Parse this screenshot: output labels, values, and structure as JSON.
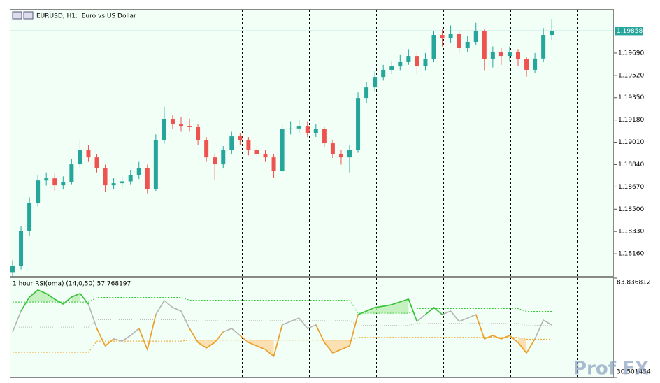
{
  "chart_data": [
    {
      "type": "candlestick",
      "title": "EURUSD, H1:  Euro vs US Dollar",
      "up_color": "#26a69a",
      "down_color": "#ef5350",
      "open": [
        1.1802,
        1.18069,
        1.18336,
        1.18549,
        1.18719,
        1.18735,
        1.18682,
        1.18709,
        1.18842,
        1.18949,
        1.18895,
        1.18815,
        1.18682,
        1.18698,
        1.18712,
        1.18762,
        1.18815,
        1.18656,
        1.19029,
        1.19189,
        1.19146,
        1.19135,
        1.19128,
        1.19029,
        1.18895,
        1.18842,
        1.18949,
        1.19055,
        1.19029,
        1.18949,
        1.18922,
        1.18895,
        1.18789,
        1.19109,
        1.19115,
        1.19135,
        1.19082,
        1.19109,
        1.19002,
        1.18922,
        1.18895,
        1.18949,
        1.19348,
        1.19428,
        1.19508,
        1.19562,
        1.19588,
        1.19626,
        1.19668,
        1.19588,
        1.19642,
        1.19828,
        1.19801,
        1.19839,
        1.19732,
        1.19775,
        1.19855,
        1.19642,
        1.19695,
        1.19668,
        1.197,
        1.19642,
        1.19562,
        1.19648,
        1.19828
      ],
      "high": [
        1.1811,
        1.1837,
        1.1859,
        1.1876,
        1.1878,
        1.1877,
        1.1875,
        1.1888,
        1.1902,
        1.1899,
        1.1892,
        1.1884,
        1.1874,
        1.1875,
        1.188,
        1.1886,
        1.1884,
        1.1907,
        1.1928,
        1.1922,
        1.192,
        1.1919,
        1.1915,
        1.1905,
        1.1892,
        1.1898,
        1.1909,
        1.1908,
        1.1905,
        1.1898,
        1.1895,
        1.1892,
        1.1915,
        1.1917,
        1.1918,
        1.1917,
        1.1915,
        1.1913,
        1.1903,
        1.1895,
        1.1899,
        1.1939,
        1.1947,
        1.1955,
        1.196,
        1.1963,
        1.1968,
        1.1972,
        1.197,
        1.1969,
        1.1986,
        1.1987,
        1.199,
        1.1986,
        1.1982,
        1.1992,
        1.1987,
        1.1974,
        1.1973,
        1.1974,
        1.1972,
        1.1966,
        1.1969,
        1.1988,
        1.1995
      ],
      "low": [
        1.1799,
        1.1804,
        1.183,
        1.1852,
        1.1868,
        1.1864,
        1.1865,
        1.1869,
        1.1881,
        1.1886,
        1.1878,
        1.1863,
        1.1865,
        1.1866,
        1.1869,
        1.1873,
        1.1862,
        1.1864,
        1.19,
        1.1911,
        1.1909,
        1.1909,
        1.1899,
        1.1886,
        1.1872,
        1.1881,
        1.1892,
        1.1899,
        1.1891,
        1.1889,
        1.1886,
        1.1874,
        1.1877,
        1.1907,
        1.1908,
        1.1905,
        1.1905,
        1.1897,
        1.1889,
        1.1884,
        1.1878,
        1.1893,
        1.1931,
        1.194,
        1.1948,
        1.1953,
        1.1956,
        1.196,
        1.1953,
        1.1956,
        1.1962,
        1.1974,
        1.1977,
        1.1969,
        1.197,
        1.1975,
        1.1956,
        1.1958,
        1.196,
        1.1963,
        1.1959,
        1.1951,
        1.1954,
        1.1962,
        1.1979
      ],
      "close": [
        1.18069,
        1.18336,
        1.18549,
        1.18719,
        1.18735,
        1.18682,
        1.18709,
        1.18842,
        1.18949,
        1.18895,
        1.18815,
        1.18682,
        1.18698,
        1.18712,
        1.18762,
        1.18815,
        1.18656,
        1.19029,
        1.19189,
        1.19146,
        1.19135,
        1.19128,
        1.19029,
        1.18895,
        1.18842,
        1.18949,
        1.19055,
        1.19029,
        1.18949,
        1.18922,
        1.18895,
        1.18789,
        1.19109,
        1.19115,
        1.19135,
        1.19082,
        1.19109,
        1.19002,
        1.18922,
        1.18895,
        1.18949,
        1.19348,
        1.19428,
        1.19508,
        1.19562,
        1.19588,
        1.19626,
        1.19668,
        1.19588,
        1.19642,
        1.19828,
        1.19801,
        1.19839,
        1.19732,
        1.19775,
        1.19855,
        1.19642,
        1.19695,
        1.19668,
        1.197,
        1.19642,
        1.19562,
        1.19648,
        1.19828,
        1.19858
      ],
      "ylim": [
        1.1799,
        1.2002
      ],
      "yticks": [
        {
          "value": 1.1969,
          "label": "1.19690"
        },
        {
          "value": 1.1952,
          "label": "1.19520"
        },
        {
          "value": 1.1935,
          "label": "1.19350"
        },
        {
          "value": 1.1918,
          "label": "1.19180"
        },
        {
          "value": 1.1901,
          "label": "1.19010"
        },
        {
          "value": 1.1884,
          "label": "1.18840"
        },
        {
          "value": 1.1867,
          "label": "1.18670"
        },
        {
          "value": 1.185,
          "label": "1.18500"
        },
        {
          "value": 1.1833,
          "label": "1.18330"
        },
        {
          "value": 1.1816,
          "label": "1.18160"
        }
      ],
      "current_price": 1.19858,
      "current_color": "#26a69a"
    },
    {
      "type": "line",
      "title": "1 hour RSI(oma) (14,0,50) 57.768197",
      "ylim": [
        30.501454,
        83.836812
      ],
      "yticks": [
        83.836812,
        30.501454
      ],
      "line_color": "#b4b4b4",
      "above_color": "#33c633",
      "below_color": "#f0a020",
      "rsi": [
        54.9,
        66.2,
        73.7,
        77.5,
        75.6,
        72.6,
        69.9,
        73.7,
        75.6,
        69.9,
        56.8,
        47.4,
        51.2,
        50.0,
        53.0,
        56.8,
        45.5,
        64.3,
        71.8,
        68.1,
        66.2,
        56.8,
        49.3,
        46.3,
        49.3,
        54.9,
        56.8,
        53.0,
        49.3,
        47.4,
        45.5,
        41.8,
        58.7,
        60.6,
        62.4,
        56.8,
        58.7,
        49.3,
        43.6,
        45.5,
        47.4,
        64.3,
        66.2,
        68.1,
        68.8,
        69.6,
        71.1,
        72.6,
        60.6,
        64.3,
        68.1,
        64.3,
        66.2,
        60.6,
        62.4,
        64.3,
        51.2,
        53.0,
        51.2,
        53.0,
        49.3,
        43.6,
        51.2,
        61.3,
        58.7
      ],
      "upper_band": [
        71,
        71,
        71,
        71,
        71,
        71,
        71,
        71,
        71,
        71,
        73.5,
        73.5,
        73.5,
        73.5,
        73.5,
        73.5,
        73.5,
        73.5,
        73.5,
        73.5,
        73.5,
        72,
        72,
        72,
        72,
        72,
        72,
        72,
        72,
        72,
        72,
        72,
        72,
        72,
        72,
        72,
        72,
        72,
        72,
        72,
        72,
        65,
        65,
        65,
        65,
        65,
        65,
        65,
        67.5,
        67.5,
        67.5,
        67.5,
        67.5,
        67.5,
        67.5,
        67.5,
        67.5,
        67.5,
        67.5,
        67.5,
        67.5,
        66,
        66,
        66,
        66
      ],
      "middle_band": [
        57.5,
        57.5,
        57.5,
        57.5,
        57.5,
        57.5,
        57.5,
        57.5,
        57.5,
        57.5,
        61.5,
        61.5,
        61.5,
        61.5,
        61.5,
        61.5,
        61.5,
        61.5,
        61.5,
        61.5,
        61.5,
        61,
        61,
        61,
        61,
        61,
        61,
        61,
        61,
        61,
        61,
        61,
        61,
        61,
        61,
        61,
        61,
        61,
        61,
        61,
        61,
        58.5,
        58.5,
        58.5,
        58.5,
        58.5,
        58.5,
        58.5,
        59.5,
        59.5,
        59.5,
        59.5,
        59.5,
        59.5,
        59.5,
        59.5,
        59.5,
        59.5,
        59.5,
        59.5,
        59.5,
        58.5,
        58.5,
        58.5,
        58.5
      ],
      "lower_band": [
        44,
        44,
        44,
        44,
        44,
        44,
        44,
        44,
        44,
        44,
        50,
        50,
        50,
        50,
        50,
        50,
        50,
        50,
        50,
        50,
        50,
        50.5,
        50.5,
        50.5,
        50.5,
        50.5,
        50.5,
        50.5,
        50.5,
        50.5,
        50.5,
        50.5,
        50.5,
        50.5,
        50.5,
        50.5,
        50.5,
        50.5,
        50.5,
        50.5,
        50.5,
        52,
        52,
        52,
        52,
        52,
        52,
        52,
        52,
        52,
        52,
        52,
        52,
        52,
        52,
        52,
        52,
        52,
        52,
        52,
        52,
        51,
        51,
        51,
        51
      ]
    }
  ],
  "watermark": "Prof FX"
}
